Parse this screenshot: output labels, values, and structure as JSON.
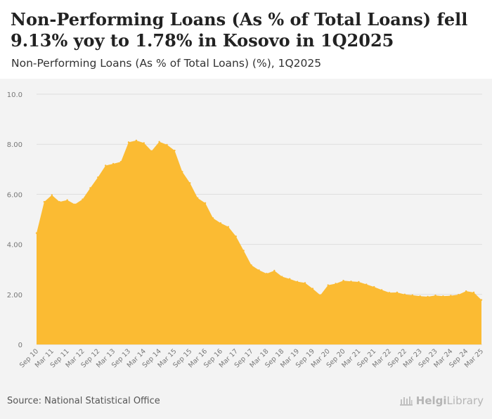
{
  "header": {
    "title": "Non-Performing Loans (As % of Total Loans) fell 9.13% yoy to 1.78% in Kosovo in 1Q2025",
    "subtitle": "Non-Performing Loans (As % of Total Loans) (%), 1Q2025"
  },
  "footer": {
    "source": "Source: National Statistical Office",
    "brand_a": "Helgi",
    "brand_b": "Library"
  },
  "colors": {
    "area_fill": "#fbbb33",
    "grid": "#dedede",
    "axis_text": "#777777"
  },
  "chart_data": {
    "type": "area",
    "title": "Non-Performing Loans (As % of Total Loans) fell 9.13% yoy to 1.78% in Kosovo in 1Q2025",
    "subtitle": "Non-Performing Loans (As % of Total Loans) (%), 1Q2025",
    "xlabel": "",
    "ylabel": "",
    "ylim": [
      0,
      10
    ],
    "y_ticks": [
      "0",
      "2.00",
      "4.00",
      "6.00",
      "8.00",
      "10.0"
    ],
    "x_ticks": [
      "Sep 10",
      "Mar 11",
      "Sep 11",
      "Mar 12",
      "Sep 12",
      "Mar 13",
      "Sep 13",
      "Mar 14",
      "Sep 14",
      "Mar 15",
      "Sep 15",
      "Mar 16",
      "Sep 16",
      "Mar 17",
      "Sep 17",
      "Mar 18",
      "Sep 18",
      "Mar 19",
      "Sep 19",
      "Mar 20",
      "Sep 20",
      "Mar 21",
      "Sep 21",
      "Mar 22",
      "Sep 22",
      "Mar 23",
      "Sep 23",
      "Mar 24",
      "Sep 24",
      "Mar 25"
    ],
    "grid": true,
    "legend": "none",
    "series": [
      {
        "x": [
          "Sep 10",
          "Dec 10",
          "Mar 11",
          "Jun 11",
          "Sep 11",
          "Dec 11",
          "Mar 12",
          "Jun 12",
          "Sep 12",
          "Dec 12",
          "Mar 13",
          "Jun 13",
          "Sep 13",
          "Dec 13",
          "Mar 14",
          "Jun 14",
          "Sep 14",
          "Dec 14",
          "Mar 15",
          "Jun 15",
          "Sep 15",
          "Dec 15",
          "Mar 16",
          "Jun 16",
          "Sep 16",
          "Dec 16",
          "Mar 17",
          "Jun 17",
          "Sep 17",
          "Dec 17",
          "Mar 18",
          "Jun 18",
          "Sep 18",
          "Dec 18",
          "Mar 19",
          "Jun 19",
          "Sep 19",
          "Dec 19",
          "Mar 20",
          "Jun 20",
          "Sep 20",
          "Dec 20",
          "Mar 21",
          "Jun 21",
          "Sep 21",
          "Dec 21",
          "Mar 22",
          "Jun 22",
          "Sep 22",
          "Dec 22",
          "Mar 23",
          "Jun 23",
          "Sep 23",
          "Dec 23",
          "Mar 24",
          "Jun 24",
          "Sep 24",
          "Dec 24",
          "Mar 25"
        ],
        "values": [
          4.45,
          5.7,
          5.97,
          5.7,
          5.77,
          5.6,
          5.8,
          6.25,
          6.68,
          7.15,
          7.22,
          7.3,
          8.08,
          8.15,
          8.05,
          7.73,
          8.1,
          7.98,
          7.75,
          6.9,
          6.45,
          5.85,
          5.65,
          5.05,
          4.85,
          4.7,
          4.32,
          3.75,
          3.17,
          2.97,
          2.83,
          2.95,
          2.71,
          2.62,
          2.51,
          2.46,
          2.23,
          1.97,
          2.37,
          2.43,
          2.55,
          2.52,
          2.5,
          2.4,
          2.3,
          2.18,
          2.07,
          2.08,
          2.0,
          1.97,
          1.93,
          1.91,
          1.96,
          1.93,
          1.95,
          1.99,
          2.13,
          2.08,
          1.78
        ]
      }
    ]
  }
}
